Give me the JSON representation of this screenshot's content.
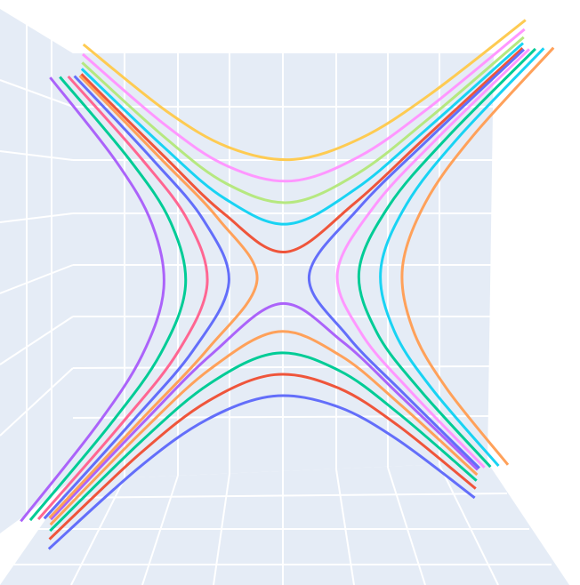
{
  "chart_data": {
    "type": "line3d",
    "xlim": [
      -1.2,
      1.2
    ],
    "ylim": [
      -1.2,
      1.2
    ],
    "series": [
      {
        "color": "#FECB52",
        "x": [
          -1,
          -0.6,
          -0.3,
          0,
          0.3,
          0.6,
          1
        ],
        "values": [
          1.141,
          0.814,
          0.627,
          0.55,
          0.627,
          0.814,
          1.141
        ]
      },
      {
        "color": "#FF97FF",
        "x": [
          -1,
          -0.6,
          -0.3,
          0,
          0.3,
          0.6,
          1
        ],
        "values": [
          1.097,
          0.75,
          0.541,
          0.45,
          0.541,
          0.75,
          1.097
        ]
      },
      {
        "color": "#B6E880",
        "x": [
          -1,
          -0.6,
          -0.3,
          0,
          0.3,
          0.6,
          1
        ],
        "values": [
          1.059,
          0.695,
          0.461,
          0.35,
          0.461,
          0.695,
          1.059
        ]
      },
      {
        "color": "#19d3f3",
        "x": [
          -1,
          -0.6,
          -0.3,
          0,
          0.3,
          0.6,
          1
        ],
        "values": [
          1.031,
          0.65,
          0.391,
          0.25,
          0.391,
          0.65,
          1.031
        ]
      },
      {
        "color": "#EF553B",
        "x": [
          -1,
          -0.6,
          -0.3,
          0,
          0.3,
          0.6,
          1
        ],
        "values": [
          1.007,
          0.612,
          0.323,
          0.12,
          0.323,
          0.612,
          1.007
        ]
      },
      {
        "color": "#636efa",
        "x": [
          -1,
          -0.6,
          -0.3,
          0,
          0.3,
          0.6,
          1
        ],
        "values": [
          -1.141,
          -0.814,
          -0.627,
          -0.55,
          -0.627,
          -0.814,
          -1.141
        ]
      },
      {
        "color": "#EF553B",
        "x": [
          -1,
          -0.6,
          -0.3,
          0,
          0.3,
          0.6,
          1
        ],
        "values": [
          -1.097,
          -0.75,
          -0.541,
          -0.45,
          -0.541,
          -0.75,
          -1.097
        ]
      },
      {
        "color": "#00cc96",
        "x": [
          -1,
          -0.6,
          -0.3,
          0,
          0.3,
          0.6,
          1
        ],
        "values": [
          -1.059,
          -0.695,
          -0.461,
          -0.35,
          -0.461,
          -0.695,
          -1.059
        ]
      },
      {
        "color": "#FFA15A",
        "x": [
          -1,
          -0.6,
          -0.3,
          0,
          0.3,
          0.6,
          1
        ],
        "values": [
          -1.031,
          -0.65,
          -0.391,
          -0.25,
          -0.391,
          -0.65,
          -1.031
        ]
      },
      {
        "color": "#ab63fa",
        "x": [
          -1,
          -0.6,
          -0.3,
          0,
          0.3,
          0.6,
          1
        ],
        "values": [
          -1.007,
          -0.612,
          -0.323,
          -0.12,
          -0.323,
          -0.612,
          -1.007
        ]
      },
      {
        "color": "#ab63fa",
        "x": [
          -1.141,
          -0.814,
          -0.627,
          -0.55,
          -0.627,
          -0.814,
          -1.141
        ],
        "values": [
          -1,
          -0.6,
          -0.3,
          0,
          0.3,
          0.6,
          1
        ]
      },
      {
        "color": "#00cc96",
        "x": [
          -1.097,
          -0.75,
          -0.541,
          -0.45,
          -0.541,
          -0.75,
          -1.097
        ],
        "values": [
          -1,
          -0.6,
          -0.3,
          0,
          0.3,
          0.6,
          1
        ]
      },
      {
        "color": "#FF6692",
        "x": [
          -1.059,
          -0.695,
          -0.461,
          -0.35,
          -0.461,
          -0.695,
          -1.059
        ],
        "values": [
          -1,
          -0.6,
          -0.3,
          0,
          0.3,
          0.6,
          1
        ]
      },
      {
        "color": "#636efa",
        "x": [
          -1.031,
          -0.65,
          -0.391,
          -0.25,
          -0.391,
          -0.65,
          -1.031
        ],
        "values": [
          -1,
          -0.6,
          -0.3,
          0,
          0.3,
          0.6,
          1
        ]
      },
      {
        "color": "#FFA15A",
        "x": [
          -1.007,
          -0.612,
          -0.323,
          -0.12,
          -0.323,
          -0.612,
          -1.007
        ],
        "values": [
          -1,
          -0.6,
          -0.3,
          0,
          0.3,
          0.6,
          1
        ]
      },
      {
        "color": "#FFA15A",
        "x": [
          1.141,
          0.814,
          0.627,
          0.55,
          0.627,
          0.814,
          1.141
        ],
        "values": [
          -1,
          -0.6,
          -0.3,
          0,
          0.3,
          0.6,
          1
        ]
      },
      {
        "color": "#19d3f3",
        "x": [
          1.097,
          0.75,
          0.541,
          0.45,
          0.541,
          0.75,
          1.097
        ],
        "values": [
          -1,
          -0.6,
          -0.3,
          0,
          0.3,
          0.6,
          1
        ]
      },
      {
        "color": "#00cc96",
        "x": [
          1.059,
          0.695,
          0.461,
          0.35,
          0.461,
          0.695,
          1.059
        ],
        "values": [
          -1,
          -0.6,
          -0.3,
          0,
          0.3,
          0.6,
          1
        ]
      },
      {
        "color": "#FF97FF",
        "x": [
          1.031,
          0.65,
          0.391,
          0.25,
          0.391,
          0.65,
          1.031
        ],
        "values": [
          -1,
          -0.6,
          -0.3,
          0,
          0.3,
          0.6,
          1
        ]
      },
      {
        "color": "#636efa",
        "x": [
          1.007,
          0.612,
          0.323,
          0.12,
          0.323,
          0.612,
          1.007
        ],
        "values": [
          -1,
          -0.6,
          -0.3,
          0,
          0.3,
          0.6,
          1
        ]
      }
    ]
  }
}
